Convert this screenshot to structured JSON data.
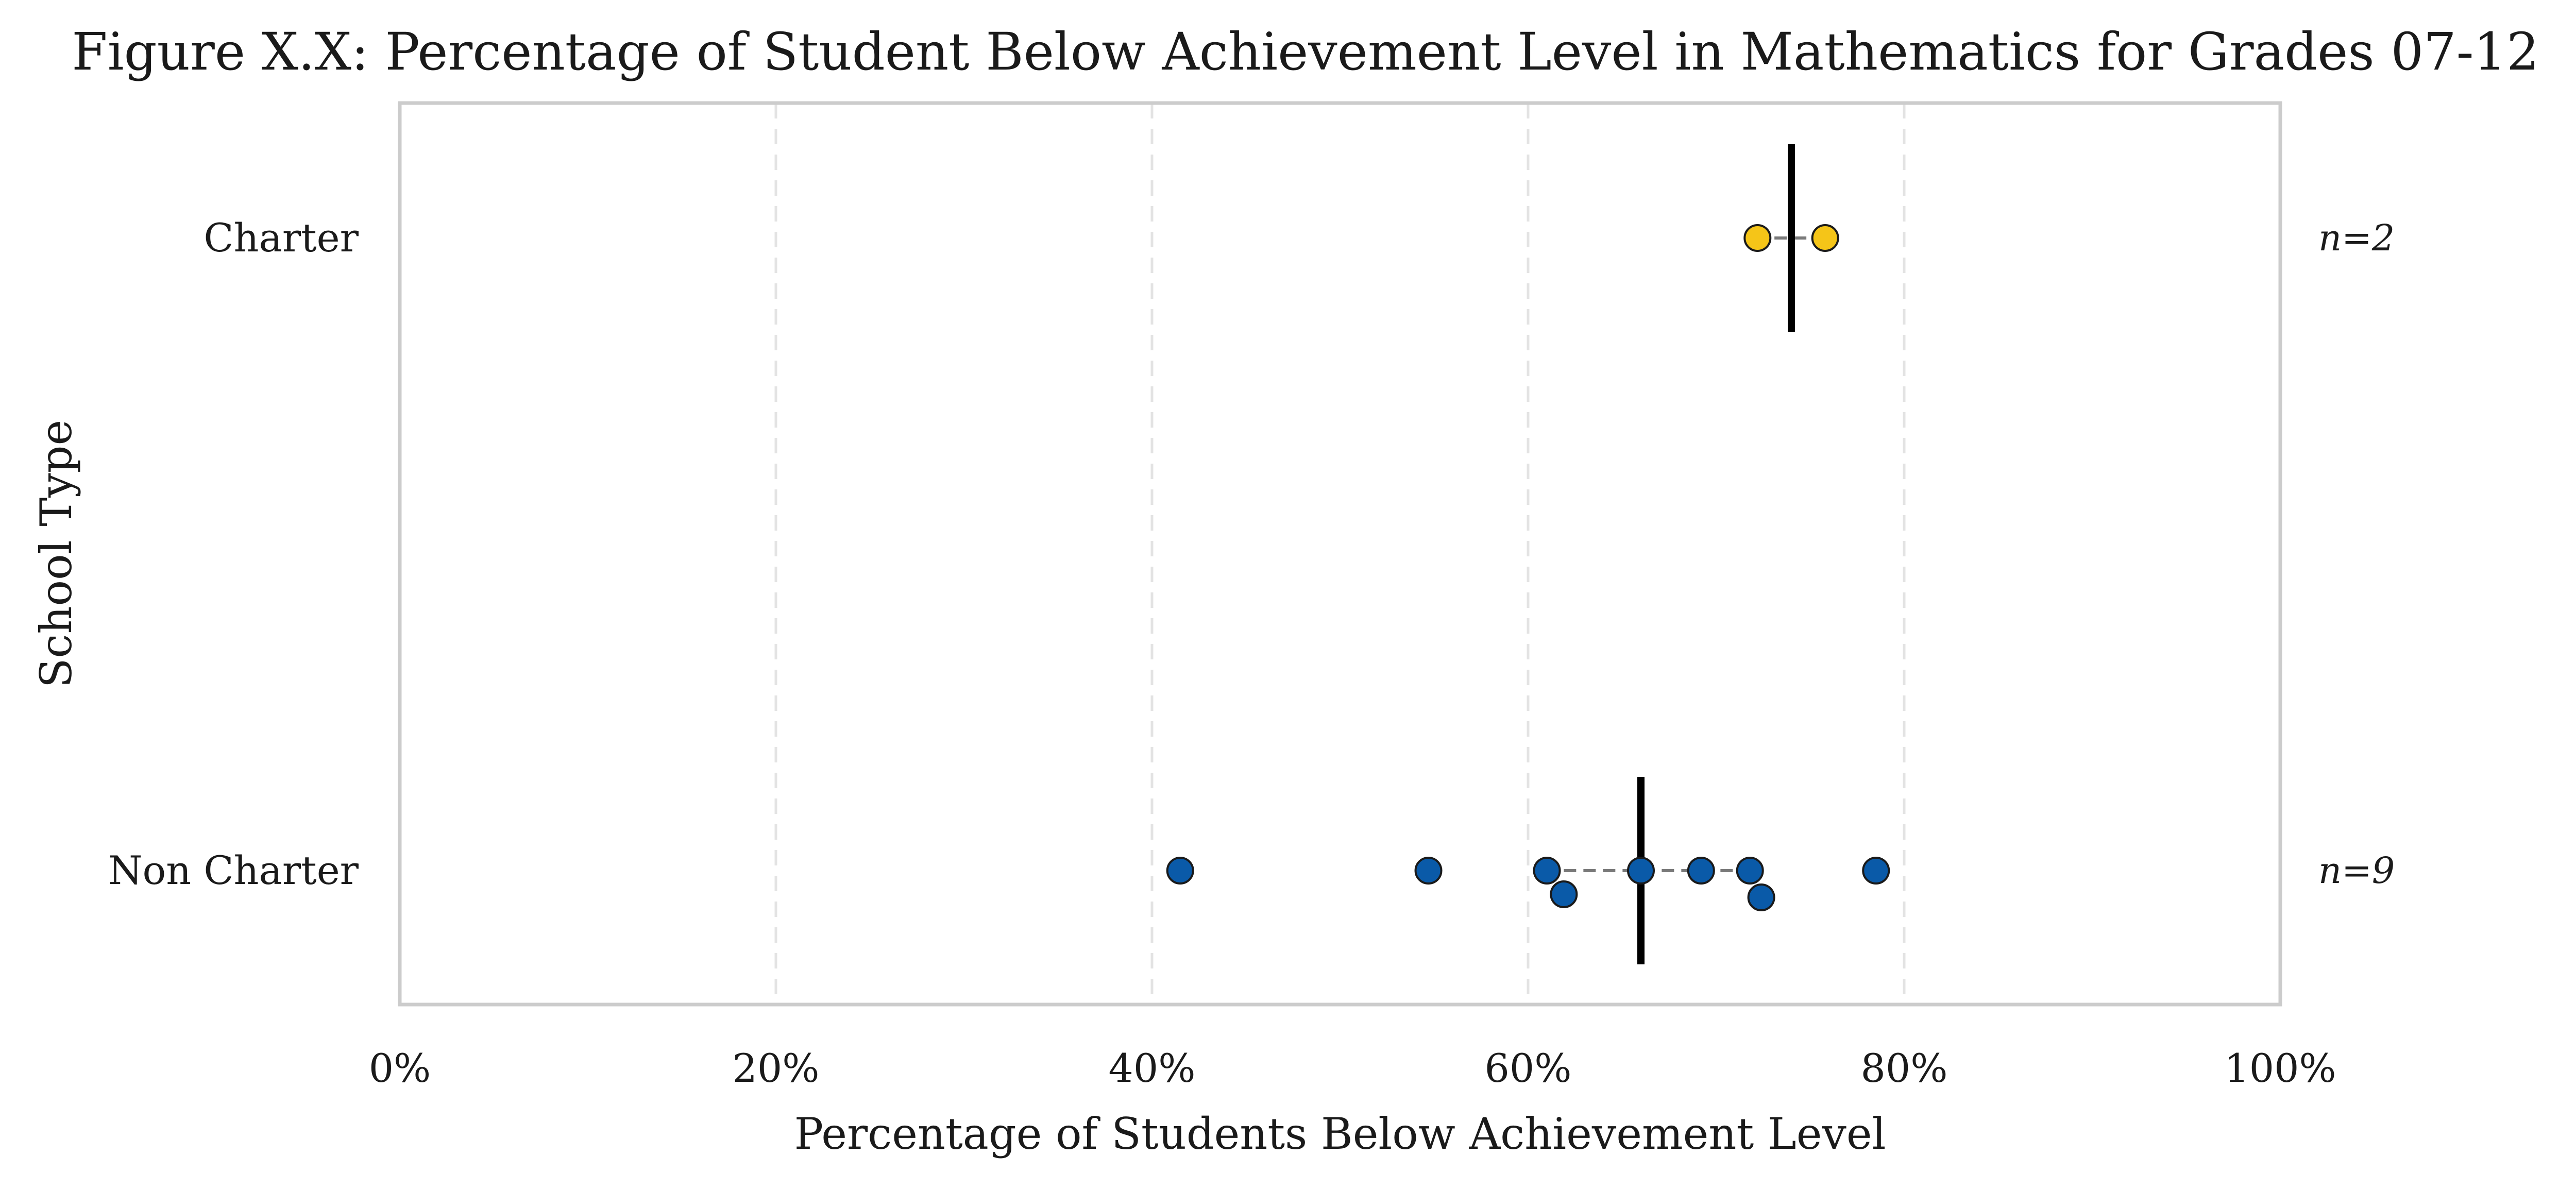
{
  "chart_data": {
    "type": "scatter",
    "title": "Figure X.X: Percentage of Student Below Achievement Level in Mathematics for Grades 07-12",
    "xlabel": "Percentage of Students Below Achievement Level",
    "ylabel": "School Type",
    "xlim": [
      0,
      100
    ],
    "xticks": [
      0,
      20,
      40,
      60,
      80,
      100
    ],
    "xtick_labels": [
      "0%",
      "20%",
      "40%",
      "60%",
      "80%",
      "100%"
    ],
    "grid": "vertical dashed",
    "categories": [
      "Charter",
      "Non Charter"
    ],
    "groups": [
      {
        "category": "Charter",
        "n_label": "n=2",
        "color": "#f5c518",
        "points": [
          72.2,
          75.8
        ],
        "median": 74.0,
        "iqr": [
          73.1,
          74.9
        ]
      },
      {
        "category": "Non Charter",
        "n_label": "n=9",
        "color": "#0a5aa8",
        "points": [
          41.5,
          54.7,
          61.0,
          61.9,
          66.0,
          69.2,
          71.8,
          72.4,
          78.5
        ],
        "median": 66.0,
        "iqr": [
          61.9,
          71.8
        ]
      }
    ]
  }
}
